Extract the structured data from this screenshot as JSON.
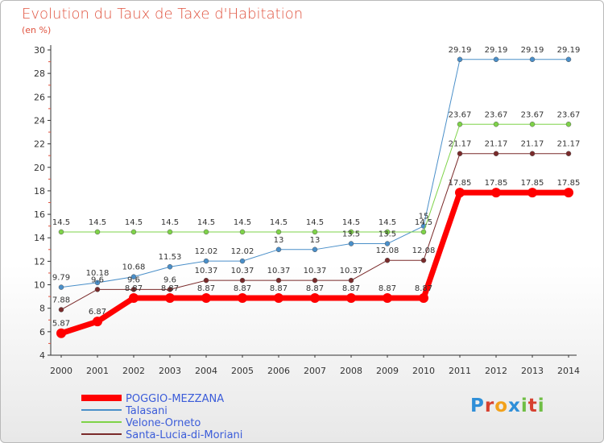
{
  "header": {
    "title": "Evolution du Taux de Taxe d'Habitation",
    "unit": "(en %)"
  },
  "logo": {
    "text": "Proxiti"
  },
  "colors": {
    "poggio": "#ff0000",
    "talasani": "#4a8fc9",
    "velone": "#7ed348",
    "santa": "#7a2a2a",
    "axis": "#333333"
  },
  "chart_data": {
    "type": "line",
    "title": "Evolution du Taux de Taxe d'Habitation",
    "ylabel": "(en %)",
    "ylim": [
      4,
      30
    ],
    "yticks": [
      4,
      6,
      8,
      10,
      12,
      14,
      16,
      18,
      20,
      22,
      24,
      26,
      28,
      30
    ],
    "x": [
      "2000",
      "2001",
      "2002",
      "2003",
      "2004",
      "2005",
      "2006",
      "2007",
      "2008",
      "2009",
      "2010",
      "2011",
      "2012",
      "2013",
      "2014"
    ],
    "grid": false,
    "legend": "bottom-left",
    "series": [
      {
        "name": "POGGIO-MEZZANA",
        "color": "#ff0000",
        "width": 7,
        "values": [
          5.87,
          6.87,
          8.87,
          8.87,
          8.87,
          8.87,
          8.87,
          8.87,
          8.87,
          8.87,
          8.87,
          17.85,
          17.85,
          17.85,
          17.85
        ],
        "labels": [
          "5.87",
          "6.87",
          "8.87",
          "8.87",
          "8.87",
          "8.87",
          "8.87",
          "8.87",
          "8.87",
          "8.87",
          "8.87",
          "17.85",
          "17.85",
          "17.85",
          "17.85"
        ]
      },
      {
        "name": "Talasani",
        "color": "#4a8fc9",
        "width": 1,
        "values": [
          9.79,
          10.18,
          10.68,
          11.53,
          12.02,
          12.02,
          13,
          13,
          13.5,
          13.5,
          15,
          29.19,
          29.19,
          29.19,
          29.19
        ],
        "labels": [
          "9.79",
          "10.18",
          "10.68",
          "11.53",
          "12.02",
          "12.02",
          "13",
          "13",
          "13.5",
          "13.5",
          "15",
          "29.19",
          "29.19",
          "29.19",
          "29.19"
        ]
      },
      {
        "name": "Velone-Orneto",
        "color": "#7ed348",
        "width": 1,
        "values": [
          14.5,
          14.5,
          14.5,
          14.5,
          14.5,
          14.5,
          14.5,
          14.5,
          14.5,
          14.5,
          14.5,
          23.67,
          23.67,
          23.67,
          23.67
        ],
        "labels": [
          "14.5",
          "14.5",
          "14.5",
          "14.5",
          "14.5",
          "14.5",
          "14.5",
          "14.5",
          "14.5",
          "14.5",
          "14.5",
          "23.67",
          "23.67",
          "23.67",
          "23.67"
        ]
      },
      {
        "name": "Santa-Lucia-di-Moriani",
        "color": "#7a2a2a",
        "width": 1,
        "values": [
          7.88,
          9.6,
          9.6,
          9.6,
          10.37,
          10.37,
          10.37,
          10.37,
          10.37,
          12.08,
          12.08,
          21.17,
          21.17,
          21.17,
          21.17
        ],
        "labels": [
          "7.88",
          "9.6",
          "9.6",
          "9.6",
          "10.37",
          "10.37",
          "10.37",
          "10.37",
          "10.37",
          "12.08",
          "12.08",
          "21.17",
          "21.17",
          "21.17",
          "21.17"
        ]
      }
    ]
  }
}
